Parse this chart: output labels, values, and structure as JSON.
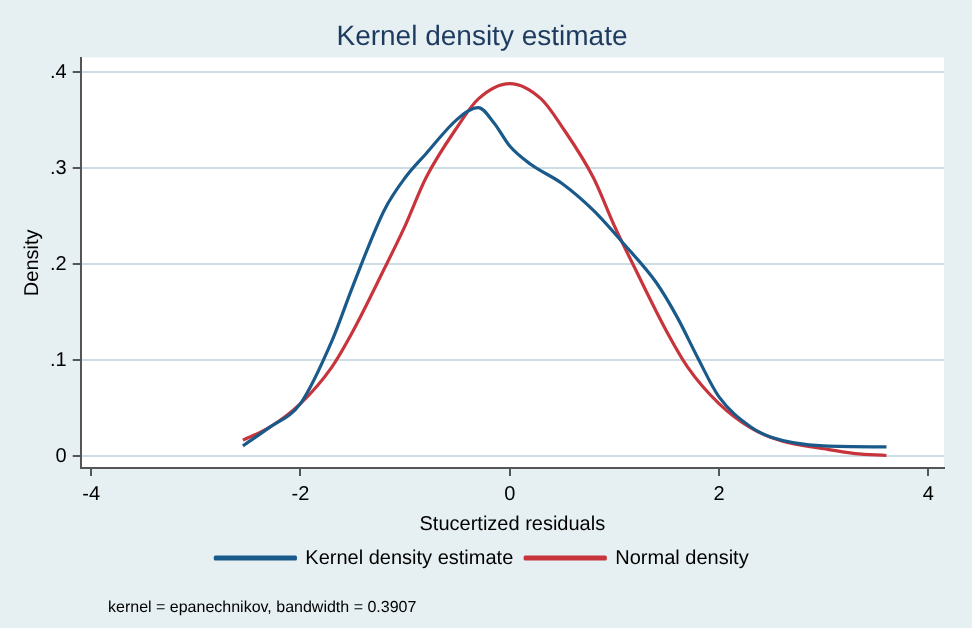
{
  "chart_data": {
    "type": "line",
    "title": "Kernel density estimate",
    "xlabel": "Stucertized residuals",
    "ylabel": "Density",
    "xlim": [
      -4.1,
      4.15
    ],
    "xticks": [
      -4,
      -2,
      0,
      2,
      4
    ],
    "ylim": [
      -0.012,
      0.415
    ],
    "yticks": [
      {
        "value": 0,
        "label": "0"
      },
      {
        "value": 0.1,
        "label": ".1"
      },
      {
        "value": 0.2,
        "label": ".2"
      },
      {
        "value": 0.3,
        "label": ".3"
      },
      {
        "value": 0.4,
        "label": ".4"
      }
    ],
    "grid": "y",
    "legend": "bottom",
    "marker": "none",
    "line_style": "solid",
    "annotations": [
      "kernel = epanechnikov, bandwidth = 0.3907"
    ],
    "series": [
      {
        "name": "Kernel density estimate",
        "color": "#1a5a8a",
        "x": [
          -2.55,
          -2.3,
          -2.0,
          -1.7,
          -1.5,
          -1.2,
          -1.0,
          -0.8,
          -0.5,
          -0.3,
          -0.15,
          0,
          0.2,
          0.5,
          0.8,
          1.1,
          1.4,
          1.6,
          1.8,
          2.0,
          2.3,
          2.5,
          3.0,
          3.6
        ],
        "values": [
          0.011,
          0.03,
          0.055,
          0.12,
          0.177,
          0.256,
          0.29,
          0.315,
          0.351,
          0.363,
          0.347,
          0.323,
          0.304,
          0.284,
          0.256,
          0.22,
          0.181,
          0.145,
          0.102,
          0.062,
          0.031,
          0.02,
          0.011,
          0.01
        ]
      },
      {
        "name": "Normal density",
        "color": "#c8343c",
        "x": [
          -2.55,
          -2.3,
          -2.0,
          -1.7,
          -1.5,
          -1.2,
          -1.0,
          -0.8,
          -0.5,
          -0.3,
          0,
          0.3,
          0.5,
          0.8,
          1.0,
          1.2,
          1.5,
          1.7,
          2.0,
          2.3,
          2.6,
          3.0,
          3.3,
          3.6
        ],
        "values": [
          0.017,
          0.03,
          0.055,
          0.093,
          0.13,
          0.195,
          0.24,
          0.29,
          0.343,
          0.372,
          0.388,
          0.372,
          0.343,
          0.29,
          0.24,
          0.195,
          0.13,
          0.093,
          0.055,
          0.03,
          0.016,
          0.008,
          0.003,
          0.001
        ]
      }
    ]
  }
}
